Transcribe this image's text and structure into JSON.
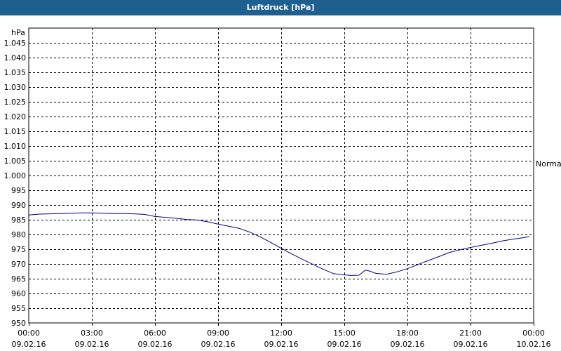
{
  "window": {
    "title": "Luftdruck [hPa]"
  },
  "colors": {
    "title_bar": "#1d5f8f",
    "series_line": "#00008b",
    "grid": "#000000"
  },
  "chart_data": {
    "type": "line",
    "title": "Luftdruck [hPa]",
    "ylabel": "hPa",
    "xlabel": "",
    "ylim": [
      950,
      1050
    ],
    "grid": true,
    "grid_style": "dashed",
    "yticks": [
      950,
      955,
      960,
      965,
      970,
      975,
      980,
      985,
      990,
      995,
      1000,
      1005,
      1010,
      1015,
      1020,
      1025,
      1030,
      1035,
      1040,
      1045
    ],
    "ytick_labels": [
      "950",
      "955",
      "960",
      "965",
      "970",
      "975",
      "980",
      "985",
      "990",
      "995",
      "1.000",
      "1.005",
      "1.010",
      "1.015",
      "1.020",
      "1.025",
      "1.030",
      "1.035",
      "1.040",
      "1.045"
    ],
    "xlim_hours": [
      0,
      24
    ],
    "xticks": [
      {
        "h": 0,
        "time": "00:00",
        "date": "09.02.16"
      },
      {
        "h": 3,
        "time": "03:00",
        "date": "09.02.16"
      },
      {
        "h": 6,
        "time": "06:00",
        "date": "09.02.16"
      },
      {
        "h": 9,
        "time": "09:00",
        "date": "09.02.16"
      },
      {
        "h": 12,
        "time": "12:00",
        "date": "09.02.16"
      },
      {
        "h": 15,
        "time": "15:00",
        "date": "09.02.16"
      },
      {
        "h": 18,
        "time": "18:00",
        "date": "09.02.16"
      },
      {
        "h": 21,
        "time": "21:00",
        "date": "09.02.16"
      },
      {
        "h": 24,
        "time": "00:00",
        "date": "10.02.16"
      }
    ],
    "annotations": [
      {
        "text": "Normal",
        "y": 1004.1,
        "position": "right"
      }
    ],
    "series": [
      {
        "x": [
          0,
          0.5,
          1,
          1.5,
          2,
          2.5,
          3,
          3.5,
          4,
          4.5,
          5,
          5.5,
          6,
          6.5,
          7,
          7.5,
          8,
          8.5,
          9,
          9.5,
          10,
          10.5,
          11,
          11.5,
          12,
          12.5,
          13,
          13.5,
          14,
          14.5,
          15,
          15.3,
          15.7,
          16,
          16.2,
          16.5,
          17,
          17.5,
          18,
          18.5,
          19,
          19.5,
          20,
          20.5,
          21,
          21.5,
          22,
          22.5,
          23,
          23.5,
          23.8
        ],
        "y": [
          986.6,
          986.9,
          987.0,
          987.1,
          987.2,
          987.3,
          987.3,
          987.2,
          987.1,
          987.1,
          987.0,
          986.8,
          986.1,
          985.8,
          985.5,
          985.1,
          984.9,
          984.3,
          983.5,
          982.8,
          982.1,
          980.8,
          979.2,
          977.3,
          975.3,
          973.4,
          971.6,
          969.9,
          968.2,
          966.7,
          966.3,
          966.1,
          966.2,
          967.9,
          967.6,
          966.8,
          966.5,
          967.3,
          968.4,
          969.8,
          971.2,
          972.5,
          973.9,
          974.8,
          975.6,
          976.3,
          977.0,
          977.8,
          978.4,
          978.9,
          979.3
        ]
      }
    ]
  }
}
